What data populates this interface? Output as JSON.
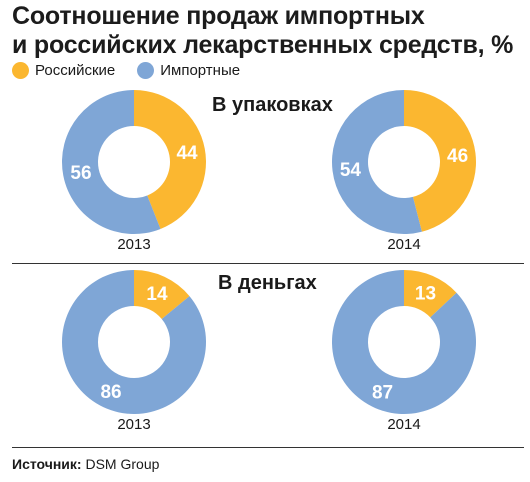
{
  "title_line1": "Соотношение продаж импортных",
  "title_line2": "и российских лекарственных средств, %",
  "legend": [
    {
      "label": "Российские",
      "color": "#FBB730"
    },
    {
      "label": "Импортные",
      "color": "#7FA6D6"
    }
  ],
  "sections": [
    {
      "label": "В упаковках"
    },
    {
      "label": "В деньгах"
    }
  ],
  "source_label": "Источник:",
  "source_value": "DSM Group",
  "chart_data": [
    {
      "type": "pie",
      "group": "В упаковках",
      "year": "2013",
      "slices": [
        {
          "name": "Российские",
          "value": 44,
          "color": "#FBB730"
        },
        {
          "name": "Импортные",
          "value": 56,
          "color": "#7FA6D6"
        }
      ]
    },
    {
      "type": "pie",
      "group": "В упаковках",
      "year": "2014",
      "slices": [
        {
          "name": "Российские",
          "value": 46,
          "color": "#FBB730"
        },
        {
          "name": "Импортные",
          "value": 54,
          "color": "#7FA6D6"
        }
      ]
    },
    {
      "type": "pie",
      "group": "В деньгах",
      "year": "2013",
      "slices": [
        {
          "name": "Российские",
          "value": 14,
          "color": "#FBB730"
        },
        {
          "name": "Импортные",
          "value": 86,
          "color": "#7FA6D6"
        }
      ]
    },
    {
      "type": "pie",
      "group": "В деньгах",
      "year": "2014",
      "slices": [
        {
          "name": "Российские",
          "value": 13,
          "color": "#FBB730"
        },
        {
          "name": "Импортные",
          "value": 87,
          "color": "#7FA6D6"
        }
      ]
    }
  ]
}
